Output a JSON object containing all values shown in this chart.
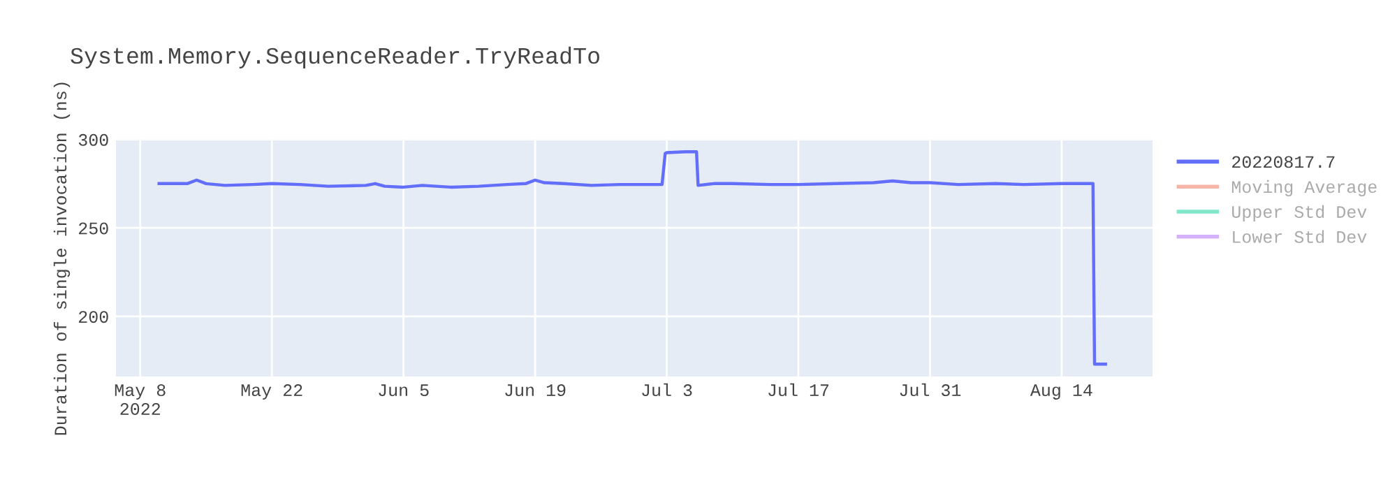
{
  "chart_data": {
    "type": "line",
    "title": "System.Memory.SequenceReader.TryReadTo",
    "ylabel": "Duration of single invocation (ns)",
    "x": [
      "2022-05-10",
      "2022-05-13",
      "2022-05-14",
      "2022-05-15",
      "2022-05-17",
      "2022-05-20",
      "2022-05-22",
      "2022-05-25",
      "2022-05-28",
      "2022-06-01",
      "2022-06-02",
      "2022-06-03",
      "2022-06-05",
      "2022-06-07",
      "2022-06-10",
      "2022-06-13",
      "2022-06-16",
      "2022-06-18",
      "2022-06-19",
      "2022-06-20",
      "2022-06-22",
      "2022-06-25",
      "2022-06-28",
      "2022-07-02T12:00",
      "2022-07-02T20:00",
      "2022-07-03",
      "2022-07-05",
      "2022-07-06T04:00",
      "2022-07-06T08:00",
      "2022-07-08",
      "2022-07-10",
      "2022-07-14",
      "2022-07-17",
      "2022-07-21",
      "2022-07-25",
      "2022-07-27",
      "2022-07-29",
      "2022-07-31",
      "2022-08-03",
      "2022-08-07",
      "2022-08-10",
      "2022-08-14",
      "2022-08-17T08:00",
      "2022-08-17T12:00",
      "2022-08-18T16:00"
    ],
    "series": [
      {
        "name": "20220817.7",
        "color": "#636efa",
        "values": [
          275,
          275,
          277,
          275,
          274,
          274.5,
          275,
          274.5,
          273.5,
          274,
          275,
          273.5,
          273,
          274,
          273,
          273.5,
          274.5,
          275,
          277,
          275.5,
          275,
          274,
          274.5,
          274.5,
          292,
          292.5,
          293,
          293,
          274,
          275,
          275,
          274.5,
          274.5,
          275,
          275.5,
          276.5,
          275.5,
          275.5,
          274.5,
          275,
          274.5,
          275,
          275,
          173,
          173
        ]
      },
      {
        "name": "Moving Average",
        "color": "#f5b5a8",
        "values": [
          null,
          null,
          null,
          null,
          null,
          null,
          null,
          null,
          null,
          null,
          null,
          null,
          null,
          null,
          null,
          null,
          null,
          null,
          null,
          null,
          null,
          null,
          null,
          null,
          null,
          null,
          null,
          null,
          null,
          null,
          null,
          null,
          null,
          null,
          null,
          null,
          null,
          null,
          null,
          null,
          null,
          null,
          null,
          null,
          null
        ]
      },
      {
        "name": "Upper Std Dev",
        "color": "#7fe6ca",
        "values": [
          null,
          null,
          null,
          null,
          null,
          null,
          null,
          null,
          null,
          null,
          null,
          null,
          null,
          null,
          null,
          null,
          null,
          null,
          null,
          null,
          null,
          null,
          null,
          null,
          null,
          null,
          null,
          null,
          null,
          null,
          null,
          null,
          null,
          null,
          null,
          null,
          null,
          null,
          null,
          null,
          null,
          null,
          null,
          null,
          null
        ]
      },
      {
        "name": "Lower Std Dev",
        "color": "#d5b1fc",
        "values": [
          null,
          null,
          null,
          null,
          null,
          null,
          null,
          null,
          null,
          null,
          null,
          null,
          null,
          null,
          null,
          null,
          null,
          null,
          null,
          null,
          null,
          null,
          null,
          null,
          null,
          null,
          null,
          null,
          null,
          null,
          null,
          null,
          null,
          null,
          null,
          null,
          null,
          null,
          null,
          null,
          null,
          null,
          null,
          null,
          null
        ]
      }
    ],
    "xlim": [
      "2022-05-05T10:00",
      "2022-08-23T16:00"
    ],
    "xticks": [
      {
        "value": "2022-05-08",
        "label": "May 8\n2022"
      },
      {
        "value": "2022-05-22",
        "label": "May 22"
      },
      {
        "value": "2022-06-05",
        "label": "Jun 5"
      },
      {
        "value": "2022-06-19",
        "label": "Jun 19"
      },
      {
        "value": "2022-07-03",
        "label": "Jul 3"
      },
      {
        "value": "2022-07-17",
        "label": "Jul 17"
      },
      {
        "value": "2022-07-31",
        "label": "Jul 31"
      },
      {
        "value": "2022-08-14",
        "label": "Aug 14"
      }
    ],
    "ylim": [
      166,
      300
    ],
    "yticks": [
      200,
      250,
      300
    ],
    "grid": true,
    "legend": "top right",
    "marker": "none",
    "line_style": "solid"
  }
}
